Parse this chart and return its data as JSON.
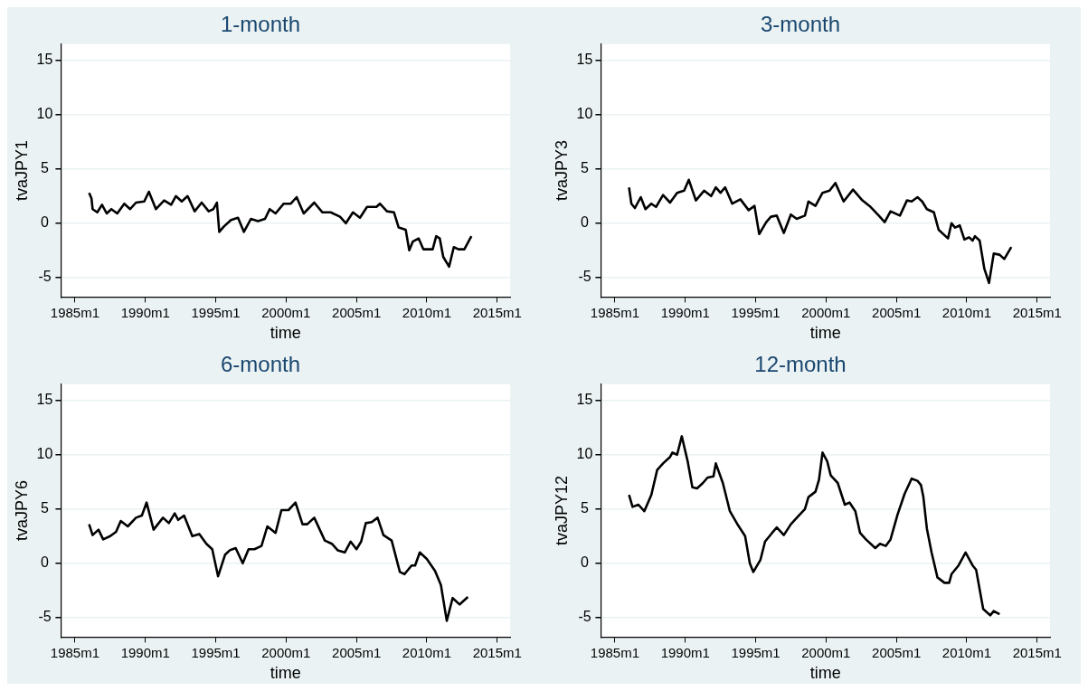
{
  "chart_data": [
    {
      "type": "line",
      "title": "1-month",
      "xlabel": "time",
      "ylabel": "tvaJPY1",
      "color": "#000000",
      "grid": "y",
      "xlim": [
        "1984-01",
        "2015-12"
      ],
      "ylim": [
        -6.8,
        16.5
      ],
      "yticks": [
        -5,
        0,
        5,
        10,
        15
      ],
      "xticks": [
        {
          "value": "1985-01",
          "label": "1985m1"
        },
        {
          "value": "1990-01",
          "label": "1990m1"
        },
        {
          "value": "1995-01",
          "label": "1995m1"
        },
        {
          "value": "2000-01",
          "label": "2000m1"
        },
        {
          "value": "2005-01",
          "label": "2005m1"
        },
        {
          "value": "2010-01",
          "label": "2010m1"
        },
        {
          "value": "2015-01",
          "label": "2015m1"
        }
      ],
      "x": [
        "1986-01",
        "1986-03",
        "1986-04",
        "1986-08",
        "1986-12",
        "1987-04",
        "1987-08",
        "1988-01",
        "1988-07",
        "1988-12",
        "1989-05",
        "1989-12",
        "1990-04",
        "1990-10",
        "1991-05",
        "1991-11",
        "1992-03",
        "1992-08",
        "1993-01",
        "1993-07",
        "1994-01",
        "1994-07",
        "1994-11",
        "1995-02",
        "1995-04",
        "1995-08",
        "1996-02",
        "1996-08",
        "1997-01",
        "1997-07",
        "1998-01",
        "1998-07",
        "1998-11",
        "1999-04",
        "1999-11",
        "2000-05",
        "2000-10",
        "2001-04",
        "2002-01",
        "2002-08",
        "2003-03",
        "2003-11",
        "2004-04",
        "2004-10",
        "2005-04",
        "2005-10",
        "2006-06",
        "2006-09",
        "2007-03",
        "2007-09",
        "2008-01",
        "2008-07",
        "2008-10",
        "2009-01",
        "2009-06",
        "2009-10",
        "2010-06",
        "2010-09",
        "2010-12",
        "2011-03",
        "2011-08",
        "2011-12",
        "2012-04",
        "2012-09",
        "2013-03"
      ],
      "values": [
        2.8,
        2.3,
        1.3,
        1.0,
        1.7,
        0.9,
        1.3,
        0.9,
        1.8,
        1.3,
        1.9,
        2.0,
        2.9,
        1.3,
        2.1,
        1.7,
        2.5,
        2.0,
        2.5,
        1.1,
        1.9,
        1.1,
        1.3,
        1.9,
        -0.8,
        -0.3,
        0.3,
        0.5,
        -0.8,
        0.4,
        0.2,
        0.4,
        1.3,
        0.9,
        1.8,
        1.8,
        2.4,
        0.9,
        1.9,
        1.0,
        1.0,
        0.6,
        0.0,
        1.0,
        0.5,
        1.5,
        1.5,
        1.8,
        1.1,
        1.0,
        -0.4,
        -0.6,
        -2.5,
        -1.7,
        -1.4,
        -2.4,
        -2.4,
        -1.2,
        -1.4,
        -3.1,
        -4.0,
        -2.2,
        -2.4,
        -2.4,
        -1.2
      ]
    },
    {
      "type": "line",
      "title": "3-month",
      "xlabel": "time",
      "ylabel": "tvaJPY3",
      "color": "#000000",
      "grid": "y",
      "xlim": [
        "1984-01",
        "2015-12"
      ],
      "ylim": [
        -6.8,
        16.5
      ],
      "yticks": [
        -5,
        0,
        5,
        10,
        15
      ],
      "xticks": [
        {
          "value": "1985-01",
          "label": "1985m1"
        },
        {
          "value": "1990-01",
          "label": "1990m1"
        },
        {
          "value": "1995-01",
          "label": "1995m1"
        },
        {
          "value": "2000-01",
          "label": "2000m1"
        },
        {
          "value": "2005-01",
          "label": "2005m1"
        },
        {
          "value": "2010-01",
          "label": "2010m1"
        },
        {
          "value": "2015-01",
          "label": "2015m1"
        }
      ],
      "x": [
        "1986-01",
        "1986-03",
        "1986-06",
        "1986-11",
        "1987-03",
        "1987-08",
        "1987-12",
        "1988-06",
        "1988-12",
        "1989-06",
        "1989-12",
        "1990-04",
        "1990-10",
        "1991-05",
        "1991-11",
        "1992-03",
        "1992-07",
        "1992-11",
        "1993-05",
        "1993-12",
        "1994-07",
        "1994-12",
        "1995-04",
        "1995-10",
        "1996-02",
        "1996-07",
        "1997-01",
        "1997-07",
        "1997-12",
        "1998-07",
        "1998-10",
        "1999-04",
        "1999-10",
        "2000-04",
        "2000-09",
        "2001-04",
        "2001-12",
        "2002-08",
        "2003-03",
        "2003-10",
        "2004-03",
        "2004-08",
        "2005-04",
        "2005-10",
        "2006-02",
        "2006-07",
        "2006-11",
        "2007-03",
        "2007-09",
        "2008-01",
        "2008-09",
        "2008-12",
        "2009-03",
        "2009-07",
        "2009-11",
        "2010-03",
        "2010-06",
        "2010-08",
        "2010-12",
        "2011-04",
        "2011-08",
        "2011-12",
        "2012-05",
        "2012-09",
        "2013-03"
      ],
      "values": [
        3.3,
        1.8,
        1.4,
        2.4,
        1.3,
        1.8,
        1.5,
        2.6,
        1.9,
        2.8,
        3.0,
        4.0,
        2.1,
        3.0,
        2.5,
        3.3,
        2.8,
        3.3,
        1.8,
        2.2,
        1.2,
        1.6,
        -1.0,
        0.1,
        0.6,
        0.7,
        -0.9,
        0.8,
        0.4,
        0.7,
        2.0,
        1.6,
        2.8,
        3.0,
        3.7,
        2.0,
        3.1,
        2.1,
        1.5,
        0.7,
        0.1,
        1.1,
        0.7,
        2.1,
        2.0,
        2.4,
        2.0,
        1.3,
        1.0,
        -0.6,
        -1.4,
        0.0,
        -0.4,
        -0.2,
        -1.5,
        -1.3,
        -1.6,
        -1.2,
        -1.6,
        -4.2,
        -5.5,
        -2.8,
        -2.9,
        -3.3,
        -2.2
      ]
    },
    {
      "type": "line",
      "title": "6-month",
      "xlabel": "time",
      "ylabel": "tvaJPY6",
      "color": "#000000",
      "grid": "y",
      "xlim": [
        "1984-01",
        "2015-12"
      ],
      "ylim": [
        -6.8,
        16.5
      ],
      "yticks": [
        -5,
        0,
        5,
        10,
        15
      ],
      "xticks": [
        {
          "value": "1985-01",
          "label": "1985m1"
        },
        {
          "value": "1990-01",
          "label": "1990m1"
        },
        {
          "value": "1995-01",
          "label": "1995m1"
        },
        {
          "value": "2000-01",
          "label": "2000m1"
        },
        {
          "value": "2005-01",
          "label": "2005m1"
        },
        {
          "value": "2010-01",
          "label": "2010m1"
        },
        {
          "value": "2015-01",
          "label": "2015m1"
        }
      ],
      "x": [
        "1986-01",
        "1986-04",
        "1986-09",
        "1987-01",
        "1987-07",
        "1987-12",
        "1988-04",
        "1988-10",
        "1989-05",
        "1989-10",
        "1990-02",
        "1990-08",
        "1991-04",
        "1991-09",
        "1992-02",
        "1992-05",
        "1992-10",
        "1993-05",
        "1993-11",
        "1994-05",
        "1994-10",
        "1995-03",
        "1995-09",
        "1996-01",
        "1996-06",
        "1996-12",
        "1997-05",
        "1997-10",
        "1998-04",
        "1998-09",
        "1999-04",
        "1999-09",
        "2000-03",
        "2000-09",
        "2001-03",
        "2001-07",
        "2002-01",
        "2002-10",
        "2003-04",
        "2003-09",
        "2004-03",
        "2004-08",
        "2005-01",
        "2005-05",
        "2005-09",
        "2006-02",
        "2006-07",
        "2006-12",
        "2007-07",
        "2008-02",
        "2008-06",
        "2008-12",
        "2009-03",
        "2009-07",
        "2010-01",
        "2010-08",
        "2011-01",
        "2011-06",
        "2011-11",
        "2012-05",
        "2012-12"
      ],
      "values": [
        3.6,
        2.6,
        3.1,
        2.2,
        2.5,
        2.9,
        3.9,
        3.4,
        4.2,
        4.4,
        5.6,
        3.1,
        4.2,
        3.7,
        4.6,
        4.0,
        4.4,
        2.5,
        2.7,
        1.8,
        1.3,
        -1.2,
        0.8,
        1.2,
        1.4,
        0.0,
        1.3,
        1.3,
        1.6,
        3.4,
        2.8,
        4.9,
        4.9,
        5.6,
        3.6,
        3.6,
        4.2,
        2.1,
        1.8,
        1.2,
        1.0,
        2.0,
        1.3,
        2.0,
        3.7,
        3.8,
        4.2,
        2.6,
        2.1,
        -0.8,
        -1.0,
        -0.2,
        -0.2,
        1.0,
        0.4,
        -0.7,
        -2.0,
        -5.3,
        -3.2,
        -3.8,
        -3.1
      ]
    },
    {
      "type": "line",
      "title": "12-month",
      "xlabel": "time",
      "ylabel": "tvaJPY12",
      "color": "#000000",
      "grid": "y",
      "xlim": [
        "1984-01",
        "2015-12"
      ],
      "ylim": [
        -6.8,
        16.5
      ],
      "yticks": [
        -5,
        0,
        5,
        10,
        15
      ],
      "xticks": [
        {
          "value": "1985-01",
          "label": "1985m1"
        },
        {
          "value": "1990-01",
          "label": "1990m1"
        },
        {
          "value": "1995-01",
          "label": "1995m1"
        },
        {
          "value": "2000-01",
          "label": "2000m1"
        },
        {
          "value": "2005-01",
          "label": "2005m1"
        },
        {
          "value": "2010-01",
          "label": "2010m1"
        },
        {
          "value": "2015-01",
          "label": "2015m1"
        }
      ],
      "x": [
        "1986-01",
        "1986-04",
        "1986-09",
        "1987-02",
        "1987-08",
        "1988-01",
        "1988-06",
        "1988-12",
        "1989-02",
        "1989-06",
        "1989-10",
        "1990-03",
        "1990-07",
        "1990-11",
        "1991-04",
        "1991-08",
        "1992-01",
        "1992-03",
        "1992-09",
        "1993-03",
        "1993-10",
        "1994-04",
        "1994-08",
        "1994-11",
        "1995-05",
        "1995-09",
        "1996-03",
        "1996-07",
        "1997-01",
        "1997-07",
        "1998-01",
        "1998-07",
        "1998-10",
        "1999-04",
        "1999-07",
        "1999-10",
        "2000-02",
        "2000-05",
        "2000-11",
        "2001-05",
        "2001-09",
        "2002-02",
        "2002-06",
        "2002-11",
        "2003-07",
        "2003-11",
        "2004-04",
        "2004-08",
        "2005-02",
        "2005-08",
        "2006-02",
        "2006-07",
        "2006-10",
        "2006-12",
        "2007-03",
        "2007-07",
        "2007-12",
        "2008-06",
        "2008-10",
        "2008-12",
        "2009-06",
        "2009-12",
        "2010-06",
        "2010-09",
        "2011-03",
        "2011-09",
        "2011-12",
        "2012-05"
      ],
      "values": [
        6.3,
        5.2,
        5.4,
        4.8,
        6.3,
        8.6,
        9.2,
        9.8,
        10.2,
        10.0,
        11.7,
        9.4,
        7.0,
        6.9,
        7.4,
        7.9,
        8.0,
        9.2,
        7.4,
        4.8,
        3.5,
        2.5,
        0.0,
        -0.8,
        0.3,
        2.0,
        2.8,
        3.3,
        2.6,
        3.6,
        4.3,
        5.0,
        6.1,
        6.6,
        7.7,
        10.2,
        9.4,
        8.1,
        7.4,
        5.4,
        5.6,
        4.8,
        2.8,
        2.2,
        1.4,
        1.8,
        1.6,
        2.2,
        4.5,
        6.4,
        7.8,
        7.6,
        7.2,
        6.1,
        3.2,
        1.0,
        -1.3,
        -1.8,
        -1.8,
        -1.0,
        -0.2,
        1.0,
        -0.2,
        -0.6,
        -4.2,
        -4.8,
        -4.4,
        -4.7
      ]
    }
  ]
}
